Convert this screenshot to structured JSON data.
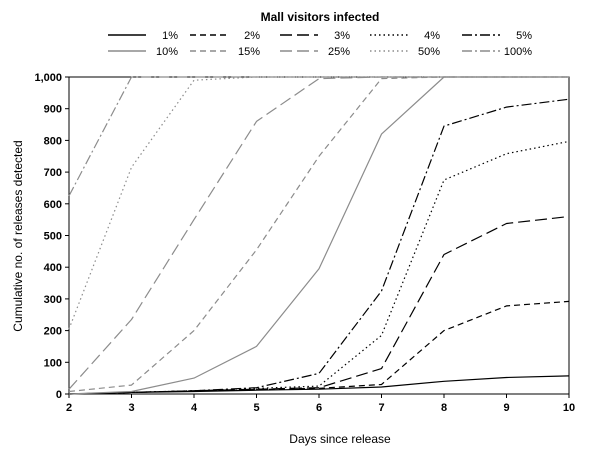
{
  "chart_data": {
    "type": "line",
    "title": "",
    "xlabel": "Days since release",
    "ylabel": "Cumulative no. of releases detected",
    "x": [
      2,
      3,
      4,
      5,
      6,
      7,
      8,
      9,
      10
    ],
    "xlim": [
      2,
      10
    ],
    "ylim": [
      0,
      1000
    ],
    "x_ticks": [
      "2",
      "3",
      "4",
      "5",
      "6",
      "7",
      "8",
      "9",
      "10"
    ],
    "y_ticks": [
      "0",
      "100",
      "200",
      "300",
      "400",
      "500",
      "600",
      "700",
      "800",
      "900",
      "1,000"
    ],
    "y_tick_values": [
      0,
      100,
      200,
      300,
      400,
      500,
      600,
      700,
      800,
      900,
      1000
    ],
    "grid": false,
    "legend": {
      "title": "Mall visitors infected",
      "placement": "top"
    },
    "series": [
      {
        "name": "1%",
        "color": "#000000",
        "dash": "solid",
        "values": [
          0,
          5,
          8,
          12,
          15,
          22,
          40,
          52,
          57
        ]
      },
      {
        "name": "2%",
        "color": "#000000",
        "dash": "dash",
        "values": [
          0,
          5,
          10,
          14,
          18,
          30,
          200,
          278,
          292
        ]
      },
      {
        "name": "3%",
        "color": "#000000",
        "dash": "longdash",
        "values": [
          0,
          5,
          10,
          15,
          20,
          80,
          440,
          538,
          560
        ]
      },
      {
        "name": "4%",
        "color": "#000000",
        "dash": "dot",
        "values": [
          0,
          5,
          10,
          18,
          25,
          185,
          675,
          758,
          797
        ]
      },
      {
        "name": "5%",
        "color": "#000000",
        "dash": "dashdot",
        "values": [
          0,
          5,
          10,
          20,
          65,
          325,
          845,
          905,
          930
        ]
      },
      {
        "name": "10%",
        "color": "#8c8c8c",
        "dash": "solid",
        "values": [
          0,
          8,
          50,
          150,
          395,
          820,
          1000,
          1000,
          1000
        ]
      },
      {
        "name": "15%",
        "color": "#8c8c8c",
        "dash": "dash",
        "values": [
          8,
          28,
          200,
          455,
          750,
          995,
          1000,
          1000,
          1000
        ]
      },
      {
        "name": "25%",
        "color": "#8c8c8c",
        "dash": "longdash",
        "values": [
          15,
          235,
          550,
          860,
          995,
          1000,
          1000,
          1000,
          1000
        ]
      },
      {
        "name": "50%",
        "color": "#8c8c8c",
        "dash": "dot",
        "values": [
          205,
          715,
          990,
          1000,
          1000,
          1000,
          1000,
          1000,
          1000
        ]
      },
      {
        "name": "100%",
        "color": "#8c8c8c",
        "dash": "dashdot",
        "values": [
          625,
          1000,
          1000,
          1000,
          1000,
          1000,
          1000,
          1000,
          1000
        ]
      }
    ]
  }
}
